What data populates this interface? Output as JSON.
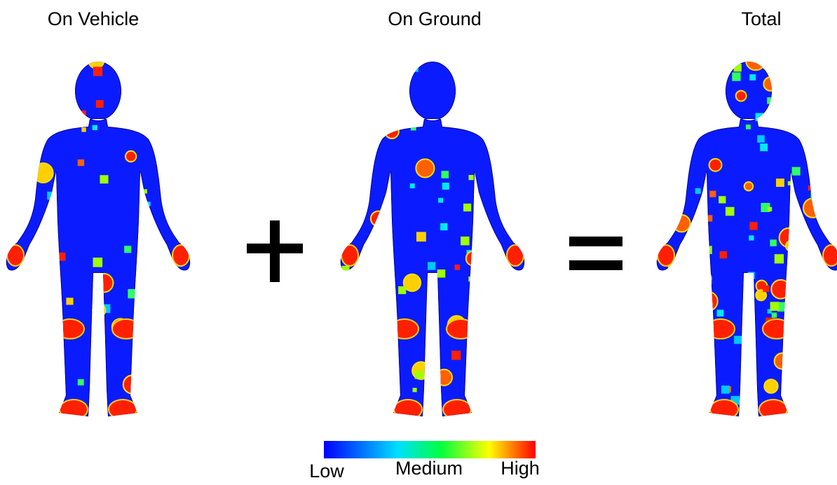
{
  "panels": [
    {
      "title": "On Vehicle"
    },
    {
      "title": "On Ground"
    },
    {
      "title": "Total"
    }
  ],
  "colorbar": {
    "low": "Low",
    "medium": "Medium",
    "high": "High"
  }
}
